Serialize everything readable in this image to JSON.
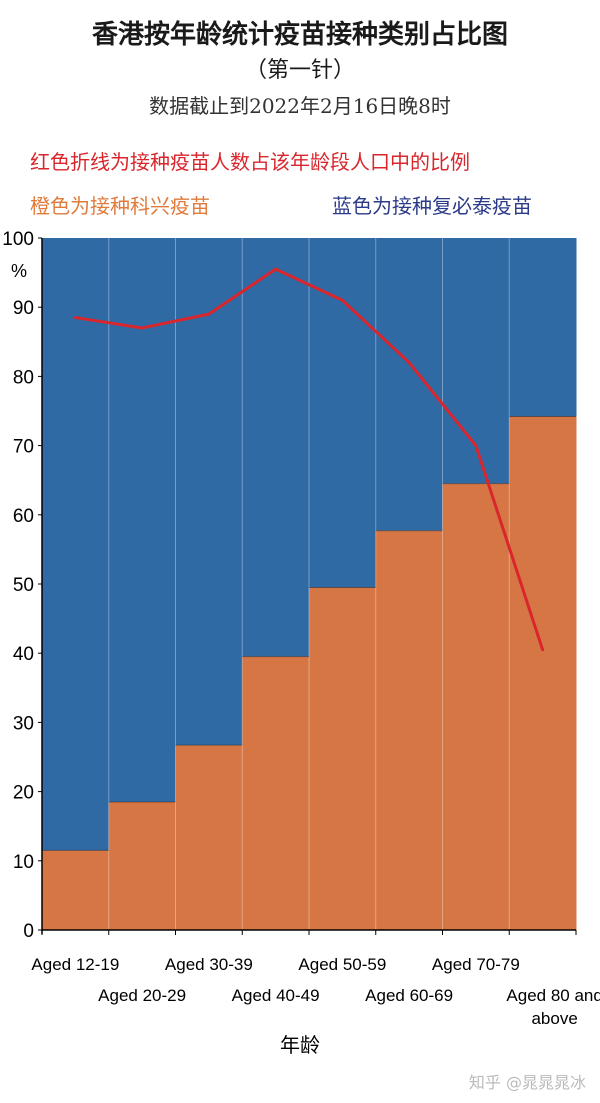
{
  "title": "香港按年龄统计疫苗接种类别占比图",
  "subtitle": "（第一针）",
  "cutoff": "数据截止到2022年2月16日晚8时",
  "legend": {
    "line": "红色折线为接种疫苗人数占该年龄段人口中的比例",
    "orange": "橙色为接种科兴疫苗",
    "blue": "蓝色为接种复必泰疫苗"
  },
  "colors": {
    "orange": "#d67644",
    "blue": "#2f6aa5",
    "line": "#d9262c"
  },
  "watermark": "知乎 @晁晁晁冰",
  "chart_data": {
    "type": "bar",
    "title": "香港按年龄统计疫苗接种类别占比图",
    "xlabel": "年龄",
    "ylabel": "%",
    "ylim": [
      0,
      100
    ],
    "yticks": [
      0,
      10,
      20,
      30,
      40,
      50,
      60,
      70,
      80,
      90,
      100
    ],
    "categories": [
      "Aged 12-19",
      "Aged 20-29",
      "Aged 30-39",
      "Aged 40-49",
      "Aged 50-59",
      "Aged 60-69",
      "Aged 70-79",
      "Aged 80 and above"
    ],
    "series": [
      {
        "name": "橙色为接种科兴疫苗",
        "kind": "stacked-bar",
        "values": [
          11.5,
          18.5,
          26.7,
          39.5,
          49.5,
          57.7,
          64.5,
          74.2
        ]
      },
      {
        "name": "蓝色为接种复必泰疫苗",
        "kind": "stacked-bar",
        "values": [
          88.5,
          81.5,
          73.3,
          60.5,
          50.5,
          42.3,
          35.5,
          25.8
        ]
      },
      {
        "name": "红色折线为接种疫苗人数占该年龄段人口中的比例",
        "kind": "line",
        "values": [
          88.5,
          87,
          89,
          95.5,
          91,
          82,
          70,
          40.5
        ]
      }
    ],
    "grid": false
  }
}
